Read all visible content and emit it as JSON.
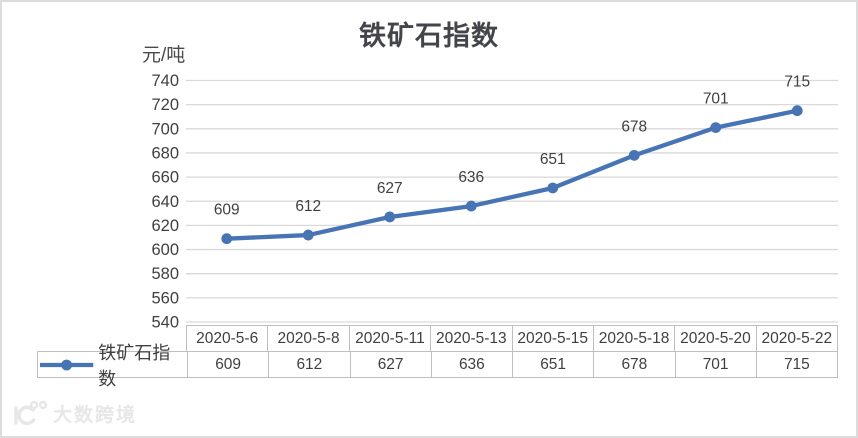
{
  "chart_data": {
    "type": "line",
    "title": "铁矿石指数",
    "ylabel": "元/吨",
    "xlabel": "",
    "categories": [
      "2020-5-6",
      "2020-5-8",
      "2020-5-11",
      "2020-5-13",
      "2020-5-15",
      "2020-5-18",
      "2020-5-20",
      "2020-5-22"
    ],
    "series": [
      {
        "name": "铁矿石指数",
        "values": [
          609,
          612,
          627,
          636,
          651,
          678,
          701,
          715
        ],
        "color": "#4674B4"
      }
    ],
    "ylim": [
      540,
      740
    ],
    "ytick_step": 20,
    "yticks": [
      740,
      720,
      700,
      680,
      660,
      640,
      620,
      600,
      580,
      560,
      540
    ],
    "grid": true,
    "data_labels": true,
    "legend_position": "data-table-left"
  },
  "watermark": {
    "logo": "10100-smiley-logo",
    "text": "大数跨境"
  },
  "colors": {
    "line": "#4674B4",
    "grid": "#d9d9d9",
    "table_border": "#bfbfbf",
    "text": "#404040",
    "frame_border": "#dcdcdc",
    "watermark": "#e7e7e7"
  }
}
